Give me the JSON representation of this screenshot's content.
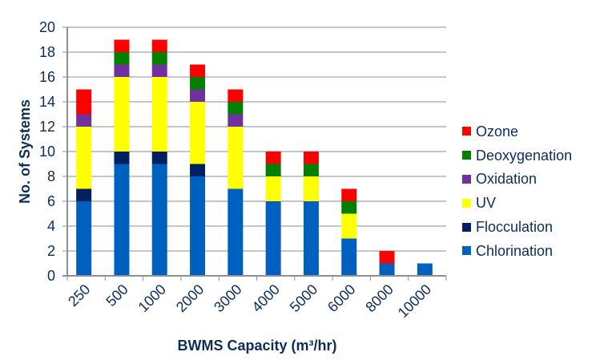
{
  "chart_data": {
    "type": "bar",
    "stacked": true,
    "title": "",
    "xlabel": "BWMS Capacity (m³/hr)",
    "ylabel": "No. of Systems",
    "ylim": [
      0,
      20
    ],
    "ytick_step": 2,
    "yticks": [
      "0",
      "2",
      "4",
      "6",
      "8",
      "10",
      "12",
      "14",
      "16",
      "18",
      "20"
    ],
    "grid": true,
    "legend_position": "right",
    "categories": [
      "250",
      "500",
      "1000",
      "2000",
      "3000",
      "4000",
      "5000",
      "6000",
      "8000",
      "10000"
    ],
    "series": [
      {
        "name": "Chlorination",
        "color": "#0060c0",
        "values": [
          6,
          9,
          9,
          8,
          7,
          6,
          6,
          3,
          1,
          1
        ]
      },
      {
        "name": "Flocculation",
        "color": "#00205f",
        "values": [
          1,
          1,
          1,
          1,
          0,
          0,
          0,
          0,
          0,
          0
        ]
      },
      {
        "name": "UV",
        "color": "#ffff00",
        "values": [
          5,
          6,
          6,
          5,
          5,
          2,
          2,
          2,
          0,
          0
        ]
      },
      {
        "name": "Oxidation",
        "color": "#7030a0",
        "values": [
          1,
          1,
          1,
          1,
          1,
          0,
          0,
          0,
          0,
          0
        ]
      },
      {
        "name": "Deoxygenation",
        "color": "#008000",
        "values": [
          0,
          1,
          1,
          1,
          1,
          1,
          1,
          1,
          0,
          0
        ]
      },
      {
        "name": "Ozone",
        "color": "#ff0000",
        "values": [
          2,
          1,
          1,
          1,
          1,
          1,
          1,
          1,
          1,
          0
        ]
      }
    ],
    "legend_order": [
      "Ozone",
      "Deoxygenation",
      "Oxidation",
      "UV",
      "Flocculation",
      "Chlorination"
    ]
  }
}
